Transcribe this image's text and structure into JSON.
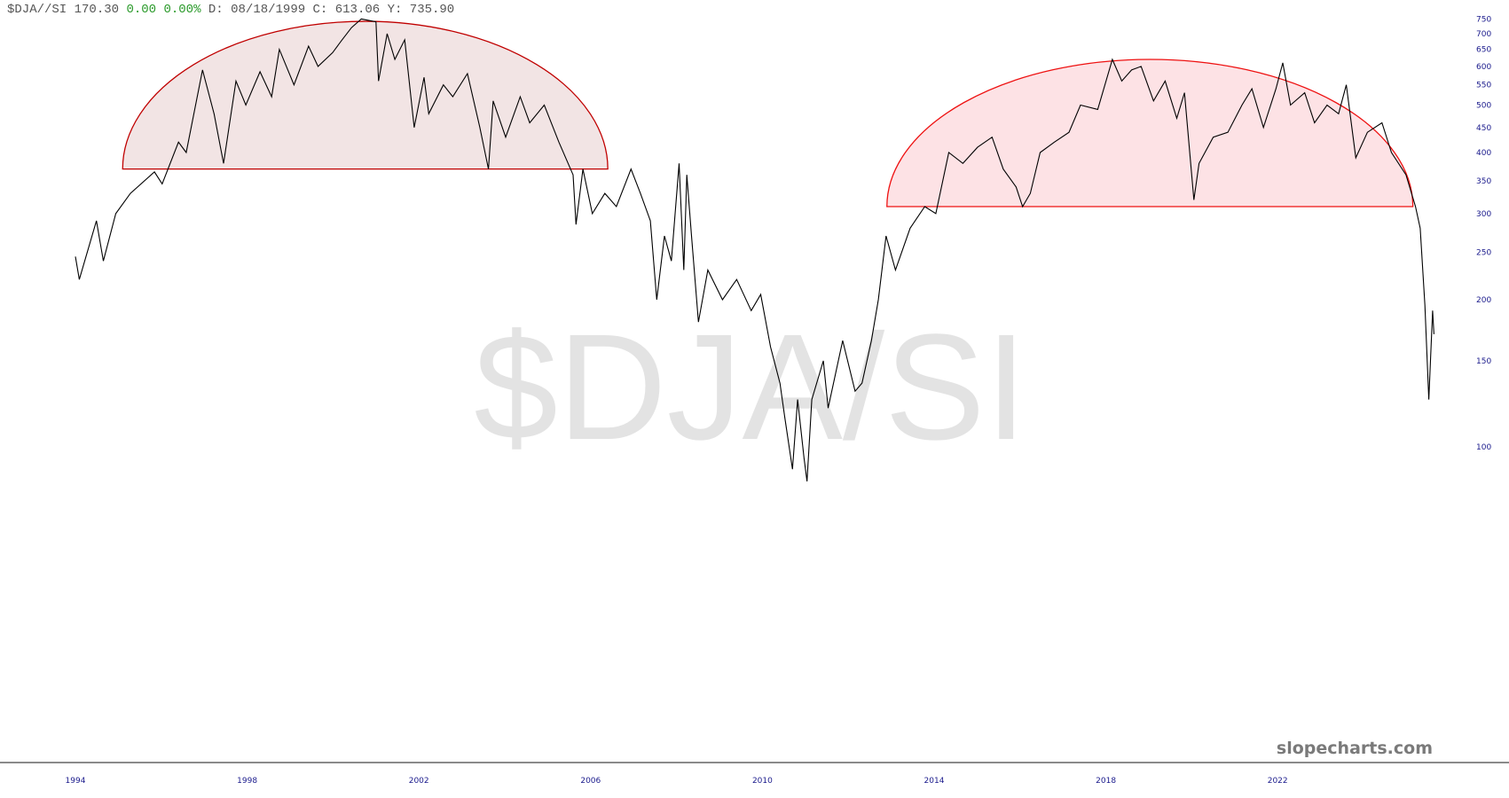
{
  "header": {
    "symbol": "$DJA//SI",
    "last": "170.30",
    "change": "0.00",
    "change_pct": "0.00%",
    "date_label": "D:",
    "date": "08/18/1999",
    "close_label": "C:",
    "close": "613.06",
    "y_label": "Y:",
    "y_value": "735.90"
  },
  "watermark": "$DJA/SI",
  "brand": "slopecharts.com",
  "colors": {
    "line": "#000000",
    "positive": "#2a9a2a",
    "axis_text": "#1a1a8c",
    "arc_left_stroke": "#c00000",
    "arc_left_fill": "#f2e4e4",
    "arc_right_stroke": "#ee1111",
    "arc_right_fill": "#fde2e5"
  },
  "chart_data": {
    "type": "line",
    "y_scale": "log",
    "ylim": [
      88,
      760
    ],
    "xlim": [
      1994,
      2026
    ],
    "grid": false,
    "y_ticks": [
      "750",
      "700",
      "650",
      "600",
      "550",
      "500",
      "450",
      "400",
      "350",
      "300",
      "250",
      "200",
      "150",
      "100"
    ],
    "x_ticks": [
      "1994",
      "1998",
      "2002",
      "2006",
      "2010",
      "2014",
      "2018",
      "2022"
    ],
    "annotations": [
      {
        "type": "half-circle",
        "x_range": [
          1995.1,
          2006.4
        ],
        "base_value": 370
      },
      {
        "type": "half-circle",
        "x_range": [
          2012.9,
          2025.15
        ],
        "base_value": 310
      }
    ],
    "series": [
      {
        "x": [
          1994.0,
          1994.09,
          1994.49,
          1994.65,
          1994.94,
          1995.28,
          1995.84,
          1996.02,
          1996.4,
          1996.58,
          1996.96,
          1997.23,
          1997.45,
          1997.74,
          1997.97,
          1998.3,
          1998.57,
          1998.75,
          1999.09,
          1999.43,
          1999.65,
          1999.99,
          2000.21,
          2000.43,
          2000.66,
          2001.0,
          2001.06,
          2001.26,
          2001.44,
          2001.67,
          2001.89,
          2002.12,
          2002.23,
          2002.57,
          2002.79,
          2003.13,
          2003.42,
          2003.62,
          2003.73,
          2004.02,
          2004.36,
          2004.58,
          2004.92,
          2005.26,
          2005.59,
          2005.66,
          2005.82,
          2006.04,
          2006.33,
          2006.6,
          2006.94,
          2007.16,
          2007.39,
          2007.54,
          2007.72,
          2007.88,
          2008.06,
          2008.17,
          2008.24,
          2008.35,
          2008.51,
          2008.73,
          2009.07,
          2009.4,
          2009.74,
          2009.96,
          2010.19,
          2010.41,
          2010.52,
          2010.7,
          2010.82,
          2010.97,
          2011.04,
          2011.15,
          2011.42,
          2011.53,
          2011.87,
          2012.16,
          2012.32,
          2012.54,
          2012.7,
          2012.88,
          2013.1,
          2013.44,
          2013.78,
          2014.04,
          2014.34,
          2014.67,
          2015.01,
          2015.35,
          2015.61,
          2015.91,
          2016.06,
          2016.24,
          2016.47,
          2016.8,
          2017.14,
          2017.41,
          2017.81,
          2018.15,
          2018.37,
          2018.6,
          2018.82,
          2019.11,
          2019.38,
          2019.65,
          2019.83,
          2020.05,
          2020.17,
          2020.5,
          2020.84,
          2021.17,
          2021.4,
          2021.67,
          2021.96,
          2022.12,
          2022.3,
          2022.63,
          2022.86,
          2023.15,
          2023.42,
          2023.6,
          2023.82,
          2024.09,
          2024.43,
          2024.65,
          2024.99,
          2025.21,
          2025.32,
          2025.43,
          2025.52,
          2025.61,
          2025.64
        ],
        "values": [
          245,
          220,
          290,
          240,
          300,
          330,
          365,
          345,
          420,
          400,
          590,
          480,
          380,
          560,
          500,
          585,
          520,
          650,
          550,
          660,
          600,
          640,
          680,
          720,
          750,
          740,
          560,
          700,
          620,
          680,
          450,
          570,
          480,
          550,
          520,
          580,
          450,
          370,
          510,
          430,
          520,
          460,
          500,
          420,
          360,
          285,
          370,
          300,
          330,
          310,
          370,
          330,
          290,
          200,
          270,
          240,
          380,
          230,
          360,
          270,
          180,
          230,
          200,
          220,
          190,
          205,
          160,
          135,
          115,
          90,
          125,
          95,
          85,
          125,
          150,
          120,
          165,
          130,
          135,
          165,
          200,
          270,
          230,
          280,
          310,
          300,
          400,
          380,
          410,
          430,
          370,
          340,
          310,
          330,
          400,
          420,
          440,
          500,
          490,
          620,
          560,
          590,
          600,
          510,
          560,
          470,
          530,
          320,
          380,
          430,
          440,
          500,
          540,
          450,
          540,
          610,
          500,
          530,
          460,
          500,
          480,
          550,
          390,
          440,
          460,
          400,
          360,
          310,
          280,
          195,
          125,
          190,
          170
        ]
      }
    ]
  }
}
